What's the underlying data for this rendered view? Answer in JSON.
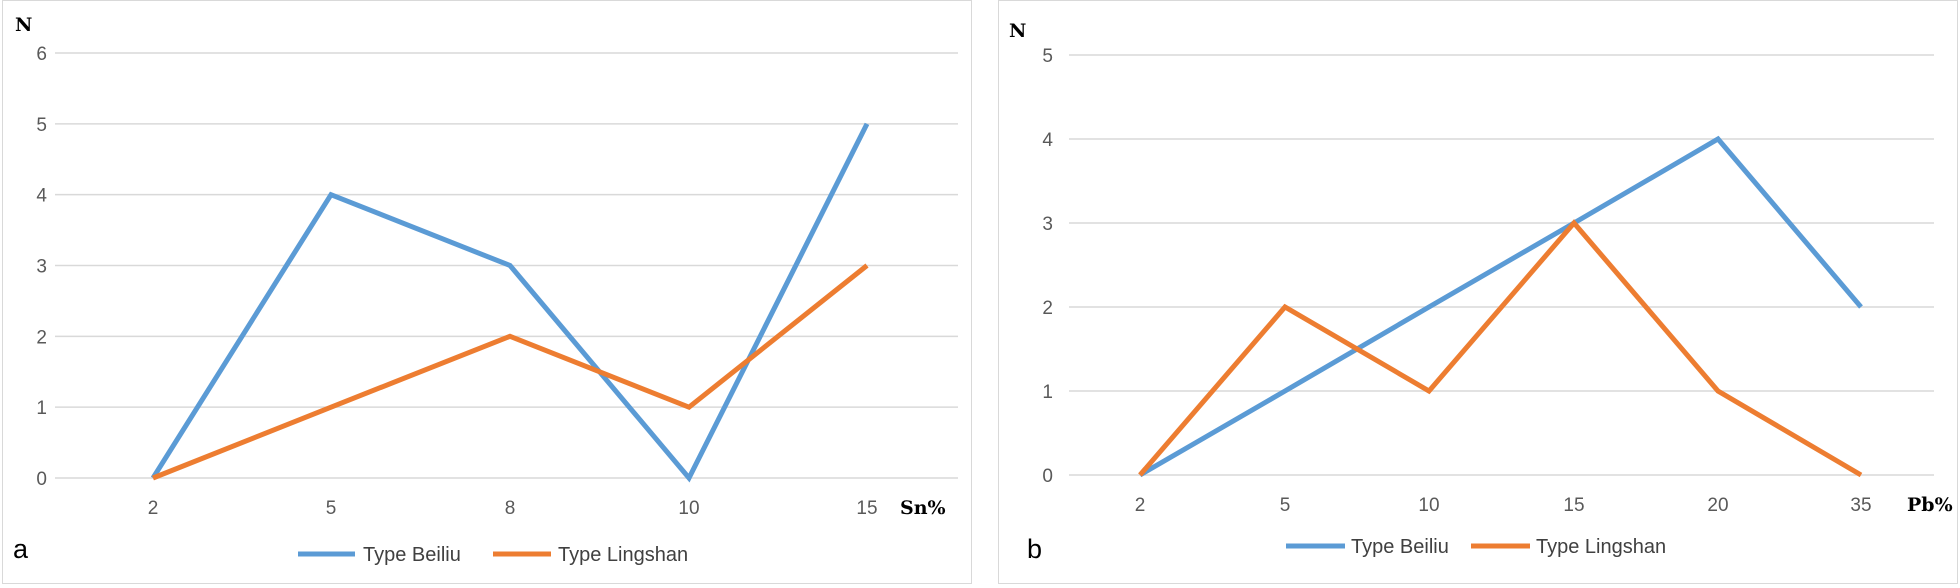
{
  "chart_data": [
    {
      "type": "line",
      "panel_label": "a",
      "categories": [
        "2",
        "5",
        "8",
        "10",
        "15"
      ],
      "series": [
        {
          "name": "Type Beiliu",
          "values": [
            0,
            4,
            3,
            0,
            5
          ],
          "color": "#5B9BD5"
        },
        {
          "name": "Type Lingshan",
          "values": [
            0,
            1,
            2,
            1,
            3
          ],
          "color": "#ED7D31"
        }
      ],
      "ylim": [
        0,
        6
      ],
      "yticks": [
        "0",
        "1",
        "2",
        "3",
        "4",
        "5",
        "6"
      ],
      "xlabel": "Sn%",
      "ylabel": "N",
      "grid": true,
      "legend": "bottom-center"
    },
    {
      "type": "line",
      "panel_label": "b",
      "categories": [
        "2",
        "5",
        "10",
        "15",
        "20",
        "35"
      ],
      "series": [
        {
          "name": "Type Beiliu",
          "values": [
            0,
            1,
            2,
            3,
            4,
            2
          ],
          "color": "#5B9BD5"
        },
        {
          "name": "Type Lingshan",
          "values": [
            0,
            2,
            1,
            3,
            1,
            0
          ],
          "color": "#ED7D31"
        }
      ],
      "ylim": [
        0,
        5
      ],
      "yticks": [
        "0",
        "1",
        "2",
        "3",
        "4",
        "5"
      ],
      "xlabel": "Pb%",
      "ylabel": "N",
      "grid": true,
      "legend": "bottom-center"
    }
  ]
}
